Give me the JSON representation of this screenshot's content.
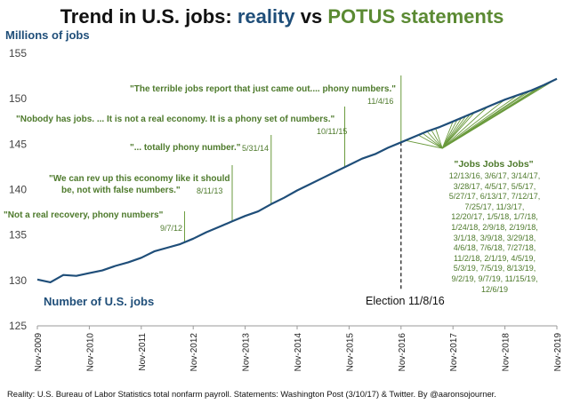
{
  "title": {
    "prefix": "Trend in U.S. jobs: ",
    "reality": "reality",
    "vs": " vs ",
    "potus": "POTUS statements",
    "reality_color": "#1f4e79",
    "potus_color": "#5b8a33"
  },
  "ylabel": "Millions of jobs",
  "series_label": "Number of U.S. jobs",
  "election_label": "Election 11/8/16",
  "source": "Reality: U.S. Bureau of Labor Statistics total nonfarm payroll. Statements: Washington Post (3/10/17) & Twitter. By @aaronsojourner.",
  "quotes": [
    {
      "text_lines": [
        "\"Not a real recovery, phony numbers\""
      ],
      "date": "9/7/12"
    },
    {
      "text_lines": [
        "\"We can rev up this economy like it should",
        "be, not with false numbers.\""
      ],
      "date": "8/11/13"
    },
    {
      "text_lines": [
        "\"... totally phony number.\""
      ],
      "date": "5/31/14"
    },
    {
      "text_lines": [
        "\"Nobody has jobs. ... It is not a real economy. It is a phony set of numbers.\""
      ],
      "date": "10/11/15"
    },
    {
      "text_lines": [
        "\"The terrible jobs report that just came out.... phony numbers.\""
      ],
      "date": "11/4/16"
    }
  ],
  "jobs_quote": {
    "title": "\"Jobs Jobs Jobs\"",
    "date_lines": [
      "12/13/16, 3/6/17, 3/14/17,",
      "3/28/17, 4/5/17, 5/5/17,",
      "5/27/17, 6/13/17, 7/12/17,",
      "7/25/17, 11/3/17,",
      "12/20/17, 1/5/18, 1/7/18,",
      "1/24/18, 2/9/18, 2/19/18,",
      "3/1/18, 3/9/18, 3/29/18,",
      "4/6/18, 7/6/18, 7/27/18,",
      "11/2/18, 2/1/19, 4/5/19,",
      "5/3/19, 7/5/19, 8/13/19,",
      "9/2/19, 9/7/19, 11/15/19,",
      "12/6/19"
    ]
  },
  "chart_data": {
    "type": "line",
    "title": "Trend in U.S. jobs: reality vs POTUS statements",
    "ylabel": "Millions of jobs",
    "xlabel": "",
    "ylim": [
      125,
      155
    ],
    "yticks": [
      125,
      130,
      135,
      140,
      145,
      150,
      155
    ],
    "xlim": [
      "Nov-2009",
      "Nov-2019"
    ],
    "xticks": [
      "Nov-2009",
      "Nov-2010",
      "Nov-2011",
      "Nov-2012",
      "Nov-2013",
      "Nov-2014",
      "Nov-2015",
      "Nov-2016",
      "Nov-2017",
      "Nov-2018",
      "Nov-2019"
    ],
    "series": [
      {
        "name": "Number of U.S. jobs",
        "color": "#1f4e79",
        "x": [
          "Nov-2009",
          "Feb-2010",
          "May-2010",
          "Aug-2010",
          "Nov-2010",
          "Feb-2011",
          "May-2011",
          "Aug-2011",
          "Nov-2011",
          "Feb-2012",
          "May-2012",
          "Aug-2012",
          "Nov-2012",
          "Feb-2013",
          "May-2013",
          "Aug-2013",
          "Nov-2013",
          "Feb-2014",
          "May-2014",
          "Aug-2014",
          "Nov-2014",
          "Feb-2015",
          "May-2015",
          "Aug-2015",
          "Nov-2015",
          "Feb-2016",
          "May-2016",
          "Aug-2016",
          "Nov-2016",
          "Feb-2017",
          "May-2017",
          "Aug-2017",
          "Nov-2017",
          "Feb-2018",
          "May-2018",
          "Aug-2018",
          "Nov-2018",
          "Feb-2019",
          "May-2019",
          "Aug-2019",
          "Nov-2019"
        ],
        "values": [
          130.1,
          129.8,
          130.6,
          130.5,
          130.8,
          131.1,
          131.6,
          132.0,
          132.5,
          133.2,
          133.6,
          134.0,
          134.6,
          135.3,
          135.9,
          136.5,
          137.1,
          137.6,
          138.4,
          139.1,
          139.9,
          140.6,
          141.3,
          142.0,
          142.7,
          143.4,
          143.9,
          144.6,
          145.2,
          145.8,
          146.4,
          146.9,
          147.5,
          148.1,
          148.7,
          149.3,
          149.9,
          150.4,
          150.9,
          151.5,
          152.2
        ]
      }
    ],
    "annotations": {
      "election": {
        "x": "Nov-2016",
        "label": "Election 11/8/16"
      },
      "statements": [
        "Sep-2012",
        "Aug-2013",
        "May-2014",
        "Oct-2015",
        "Nov-2016"
      ],
      "jobs_jobs_jobs_source": "Nov-2019"
    },
    "grid": false,
    "legend": "none"
  }
}
